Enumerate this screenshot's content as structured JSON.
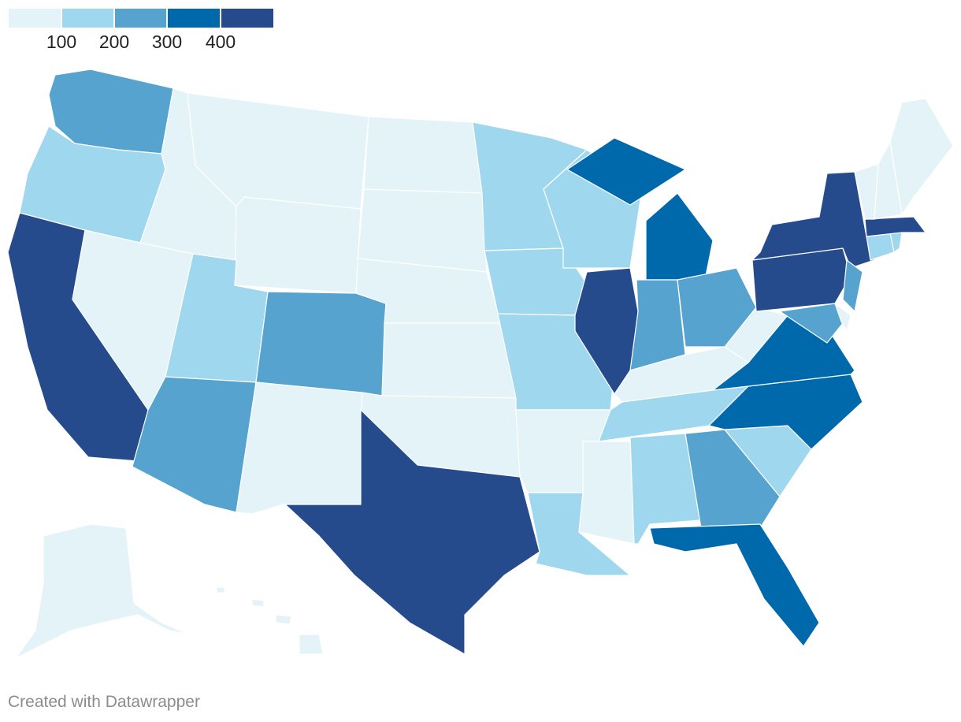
{
  "legend": {
    "labels": [
      "100",
      "200",
      "300",
      "400"
    ],
    "colors": [
      "#e3f3f8",
      "#9fd8ee",
      "#56a3cf",
      "#0069ab",
      "#264b8c"
    ]
  },
  "footer": {
    "credit": "Created with Datawrapper"
  },
  "chart_data": {
    "type": "choropleth",
    "region": "United States",
    "bins": [
      {
        "label": "<100",
        "color": "#e3f3f8"
      },
      {
        "label": "100–200",
        "color": "#9fd8ee"
      },
      {
        "label": "200–300",
        "color": "#56a3cf"
      },
      {
        "label": "300–400",
        "color": "#0069ab"
      },
      {
        "label": ">400",
        "color": "#264b8c"
      }
    ],
    "states": {
      "WA": 2,
      "OR": 1,
      "CA": 4,
      "NV": 0,
      "ID": 0,
      "MT": 0,
      "WY": 0,
      "UT": 1,
      "AZ": 2,
      "CO": 2,
      "NM": 0,
      "ND": 0,
      "SD": 0,
      "NE": 0,
      "KS": 0,
      "OK": 0,
      "TX": 4,
      "MN": 1,
      "IA": 1,
      "MO": 1,
      "AR": 0,
      "LA": 1,
      "WI": 1,
      "IL": 4,
      "MI": 3,
      "IN": 2,
      "OH": 2,
      "KY": 0,
      "TN": 1,
      "MS": 0,
      "AL": 1,
      "GA": 2,
      "FL": 3,
      "SC": 1,
      "NC": 3,
      "VA": 3,
      "WV": 0,
      "PA": 4,
      "NY": 4,
      "NJ": 2,
      "MD": 2,
      "DE": 0,
      "CT": 1,
      "RI": 1,
      "MA": 4,
      "VT": 0,
      "NH": 0,
      "ME": 0,
      "AK": 0,
      "HI": 0
    }
  }
}
